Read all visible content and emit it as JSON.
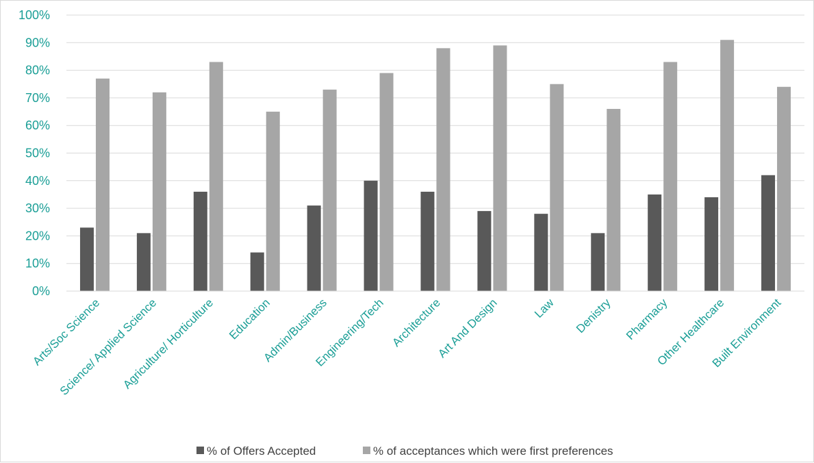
{
  "chart_data": {
    "type": "bar",
    "title": "",
    "xlabel": "",
    "ylabel": "",
    "ylim": [
      0,
      100
    ],
    "yticks": [
      0,
      10,
      20,
      30,
      40,
      50,
      60,
      70,
      80,
      90,
      100
    ],
    "ytick_labels": [
      "0%",
      "10%",
      "20%",
      "30%",
      "40%",
      "50%",
      "60%",
      "70%",
      "80%",
      "90%",
      "100%"
    ],
    "grid": true,
    "legend_position": "bottom",
    "categories": [
      "Arts/Soc Science",
      "Science/ Applied Science",
      "Agriculture/ Horticulture",
      "Education",
      "Admin/Business",
      "Engineering/Tech",
      "Architecture",
      "Art And Design",
      "Law",
      "Denistry",
      "Pharmacy",
      "Other Healthcare",
      "Built Environment"
    ],
    "series": [
      {
        "name": "% of Offers Accepted",
        "color": "#595959",
        "values": [
          23,
          21,
          36,
          14,
          31,
          40,
          36,
          29,
          28,
          21,
          35,
          34,
          42
        ]
      },
      {
        "name": "% of acceptances which were first preferences",
        "color": "#a6a6a6",
        "values": [
          77,
          72,
          83,
          65,
          73,
          79,
          88,
          89,
          75,
          66,
          83,
          91,
          74
        ]
      }
    ],
    "colors": {
      "axis_text": "#1a9e96",
      "gridline": "#d9d9d9",
      "legend_text": "#404040"
    }
  }
}
